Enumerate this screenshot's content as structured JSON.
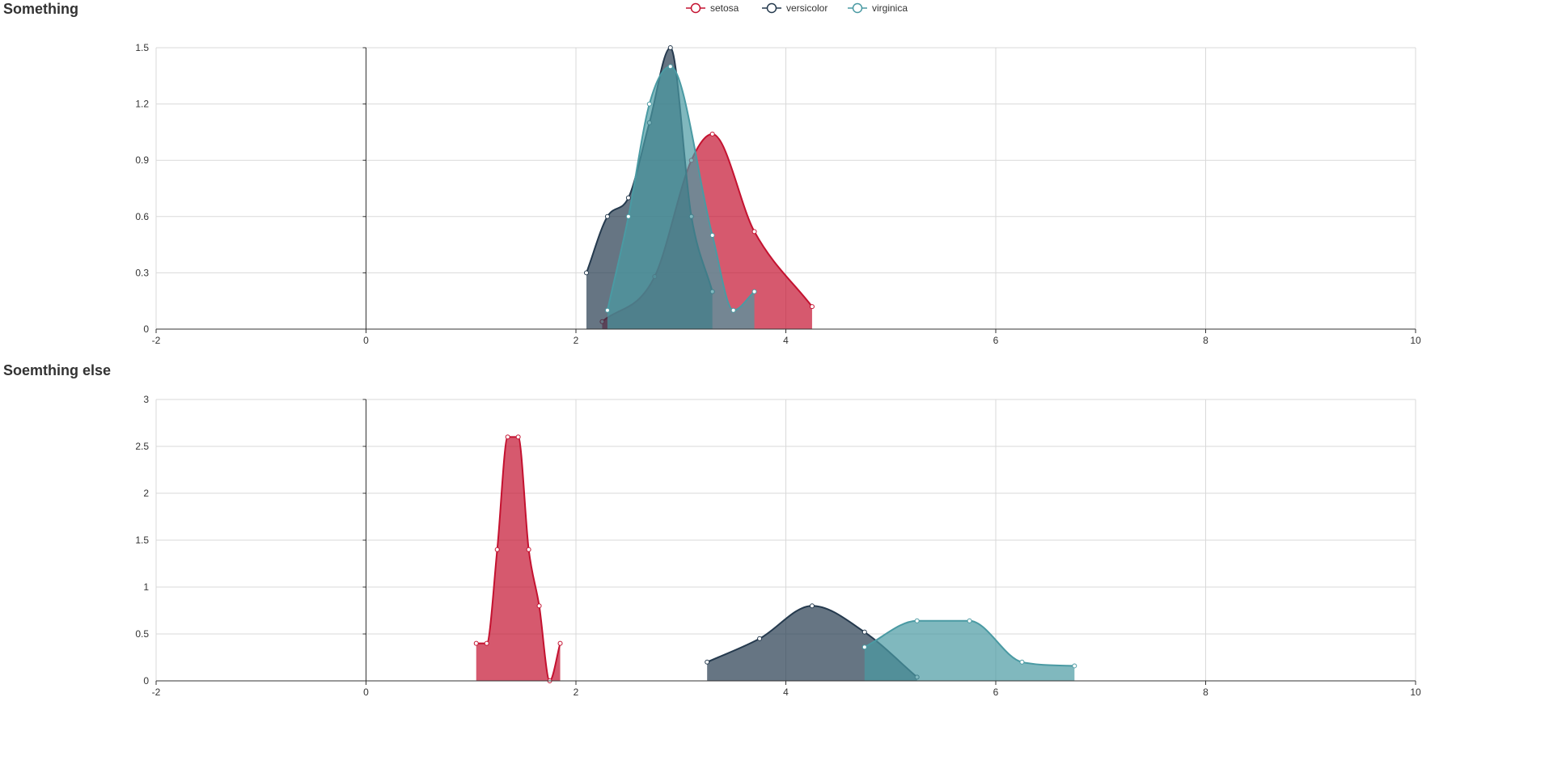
{
  "legend": [
    {
      "name": "setosa",
      "color": "#c41230"
    },
    {
      "name": "versicolor",
      "color": "#253a4e"
    },
    {
      "name": "virginica",
      "color": "#4a9aa3"
    }
  ],
  "chart_data": [
    {
      "type": "area",
      "title": "Something",
      "xlim": [
        -2,
        10
      ],
      "ylim": [
        0,
        1.5
      ],
      "xticks": [
        -2,
        0,
        2,
        4,
        6,
        8,
        10
      ],
      "yticks": [
        0,
        0.3,
        0.6,
        0.9,
        1.2,
        1.5
      ],
      "xtick_labels": [
        "-2",
        "0",
        "2",
        "4",
        "6",
        "8",
        "10"
      ],
      "ytick_labels": [
        "0",
        "0.3",
        "0.6",
        "0.9",
        "1.2",
        "1.5"
      ],
      "grid": true,
      "series": [
        {
          "name": "setosa",
          "x": [
            2.25,
            2.75,
            3.1,
            3.3,
            3.7,
            4.25
          ],
          "y": [
            0.04,
            0.28,
            0.9,
            1.04,
            0.52,
            0.12
          ]
        },
        {
          "name": "versicolor",
          "x": [
            2.1,
            2.3,
            2.5,
            2.7,
            2.9,
            3.1,
            3.3
          ],
          "y": [
            0.3,
            0.6,
            0.7,
            1.1,
            1.5,
            0.6,
            0.2
          ]
        },
        {
          "name": "virginica",
          "x": [
            2.3,
            2.5,
            2.7,
            2.9,
            3.3,
            3.5,
            3.7
          ],
          "y": [
            0.1,
            0.6,
            1.2,
            1.4,
            0.5,
            0.1,
            0.2
          ]
        }
      ]
    },
    {
      "type": "area",
      "title": "Soemthing else",
      "xlim": [
        -2,
        10
      ],
      "ylim": [
        0,
        3
      ],
      "xticks": [
        -2,
        0,
        2,
        4,
        6,
        8,
        10
      ],
      "yticks": [
        0,
        0.5,
        1,
        1.5,
        2,
        2.5,
        3
      ],
      "xtick_labels": [
        "-2",
        "0",
        "2",
        "4",
        "6",
        "8",
        "10"
      ],
      "ytick_labels": [
        "0",
        "0.5",
        "1",
        "1.5",
        "2",
        "2.5",
        "3"
      ],
      "grid": true,
      "series": [
        {
          "name": "setosa",
          "x": [
            1.05,
            1.15,
            1.25,
            1.35,
            1.45,
            1.55,
            1.65,
            1.75,
            1.85
          ],
          "y": [
            0.4,
            0.4,
            1.4,
            2.6,
            2.6,
            1.4,
            0.8,
            0,
            0.4
          ]
        },
        {
          "name": "versicolor",
          "x": [
            3.25,
            3.75,
            4.25,
            4.75,
            5.25
          ],
          "y": [
            0.2,
            0.45,
            0.8,
            0.52,
            0.04
          ]
        },
        {
          "name": "virginica",
          "x": [
            4.75,
            5.25,
            5.75,
            6.25,
            6.75
          ],
          "y": [
            0.36,
            0.64,
            0.64,
            0.2,
            0.16
          ]
        }
      ]
    }
  ]
}
